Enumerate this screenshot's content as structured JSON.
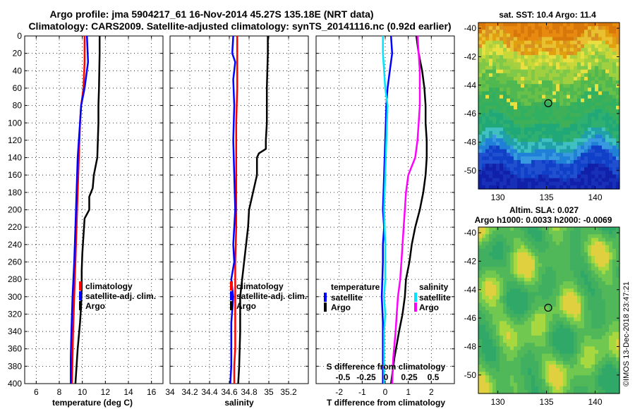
{
  "title": {
    "line1": "Argo profile: jma 5904217_61 16-Nov-2014 45.27S 135.18E (NRT data)",
    "line2": "Climatology: CARS2009. Satellite-adjusted climatology: synTS_20141116.nc (0.92d earlier)"
  },
  "watermark": "©IMOS 13-Dec-2018 23:47:21",
  "colors": {
    "climatology": "#ff0000",
    "satellite": "#0000ff",
    "argo": "#000000",
    "s_satellite": "#00e5ff",
    "s_argo": "#ff00ff"
  },
  "chart_data": [
    {
      "id": "temperature",
      "type": "line",
      "xlabel": "temperature (deg C)",
      "xlim": [
        5,
        17
      ],
      "xticks": [
        6,
        8,
        10,
        12,
        14,
        16
      ],
      "ylim": [
        0,
        400
      ],
      "yticks": [
        0,
        20,
        40,
        60,
        80,
        100,
        120,
        140,
        160,
        180,
        200,
        220,
        240,
        260,
        280,
        300,
        320,
        340,
        360,
        380,
        400
      ],
      "legend": [
        "climatology",
        "satellite-adj. clim.",
        "Argo"
      ],
      "series": [
        {
          "name": "climatology",
          "color": "#ff0000",
          "x": [
            10.2,
            10.2,
            10.1,
            9.9,
            9.8,
            9.7,
            9.6,
            9.5,
            9.4,
            9.3,
            9.2,
            9.15,
            9.1
          ],
          "y": [
            0,
            30,
            60,
            80,
            100,
            140,
            180,
            220,
            260,
            300,
            340,
            370,
            400
          ]
        },
        {
          "name": "satellite-adj. clim.",
          "color": "#0000ff",
          "x": [
            10.4,
            10.5,
            10.2,
            9.9,
            9.8,
            9.6,
            9.5,
            9.4,
            9.3,
            9.15,
            9.05,
            9.0,
            9.0
          ],
          "y": [
            0,
            30,
            60,
            80,
            100,
            140,
            180,
            220,
            260,
            300,
            340,
            370,
            400
          ]
        },
        {
          "name": "Argo",
          "color": "#000000",
          "x": [
            11.5,
            11.5,
            11.45,
            11.4,
            11.4,
            11.35,
            11.3,
            11.0,
            10.9,
            10.6,
            10.6,
            10.2,
            10.1,
            10.0,
            9.95,
            9.95,
            9.9,
            9.8,
            9.6,
            9.5,
            9.4
          ],
          "y": [
            0,
            20,
            60,
            80,
            100,
            120,
            140,
            160,
            175,
            185,
            200,
            210,
            230,
            250,
            270,
            290,
            310,
            330,
            360,
            380,
            400
          ]
        }
      ]
    },
    {
      "id": "salinity",
      "type": "line",
      "xlabel": "salinity",
      "xlim": [
        34.0,
        35.4
      ],
      "xticks": [
        34,
        34.2,
        34.4,
        34.6,
        34.8,
        35,
        35.2
      ],
      "xtick_labels": [
        "34",
        "34.2",
        "34.4",
        "34.6",
        "34.8",
        "35",
        "35.2"
      ],
      "ylim": [
        0,
        400
      ],
      "legend": [
        "climatology",
        "satellite-adj. clim.",
        "Argo"
      ],
      "series": [
        {
          "name": "climatology",
          "color": "#ff0000",
          "x": [
            34.68,
            34.68,
            34.68,
            34.67,
            34.67,
            34.67,
            34.67,
            34.66,
            34.66,
            34.66,
            34.66,
            34.65,
            34.65
          ],
          "y": [
            0,
            30,
            60,
            100,
            140,
            180,
            220,
            260,
            300,
            340,
            360,
            380,
            400
          ]
        },
        {
          "name": "satellite-adj. clim.",
          "color": "#0000ff",
          "x": [
            34.64,
            34.63,
            34.66,
            34.64,
            34.65,
            34.64,
            34.65,
            34.66,
            34.64,
            34.65,
            34.62,
            34.64,
            34.62,
            34.62,
            34.62,
            34.61
          ],
          "y": [
            0,
            20,
            30,
            50,
            80,
            120,
            160,
            200,
            240,
            260,
            280,
            300,
            330,
            360,
            380,
            400
          ]
        },
        {
          "name": "Argo",
          "color": "#000000",
          "x": [
            34.99,
            34.99,
            34.98,
            34.98,
            34.97,
            34.97,
            34.9,
            34.88,
            34.88,
            34.86,
            34.84,
            34.8,
            34.79,
            34.77,
            34.75,
            34.73,
            34.71,
            34.71,
            34.7,
            34.69
          ],
          "y": [
            0,
            20,
            60,
            100,
            120,
            130,
            135,
            140,
            160,
            170,
            180,
            200,
            220,
            240,
            260,
            280,
            300,
            340,
            380,
            400
          ]
        }
      ]
    },
    {
      "id": "difference",
      "type": "line",
      "xlabel": "T difference from climatology",
      "xlim": [
        -3,
        3
      ],
      "xticks": [
        -2,
        -1,
        0,
        1,
        2
      ],
      "ylim": [
        0,
        400
      ],
      "s_axis_label": "S difference from climatology",
      "s_ticks": [
        "-0.5",
        "-0.25",
        "0",
        "0.25",
        "0.5"
      ],
      "legend_temperature": {
        "heading": "temperature",
        "items": [
          "satellite",
          "Argo"
        ]
      },
      "legend_salinity": {
        "heading": "salinity",
        "items": [
          "satellite",
          "Argo"
        ]
      },
      "series": [
        {
          "name": "T satellite",
          "color": "#0000ff",
          "x": [
            0.25,
            0.3,
            0.2,
            0.1,
            0.05,
            0.0,
            -0.05,
            -0.1,
            -0.05,
            -0.1,
            -0.1,
            -0.15,
            -0.1,
            -0.1,
            -0.1,
            -0.1
          ],
          "y": [
            0,
            20,
            40,
            60,
            80,
            120,
            160,
            200,
            220,
            240,
            260,
            300,
            330,
            360,
            380,
            400
          ]
        },
        {
          "name": "T Argo",
          "color": "#000000",
          "x": [
            1.35,
            1.45,
            1.6,
            1.7,
            1.75,
            1.75,
            1.8,
            1.8,
            1.75,
            1.65,
            1.5,
            1.3,
            1.15,
            1.05,
            0.9,
            0.85,
            0.75,
            0.6,
            0.4,
            0.25
          ],
          "y": [
            0,
            20,
            40,
            60,
            80,
            100,
            120,
            140,
            160,
            180,
            200,
            220,
            240,
            260,
            280,
            300,
            320,
            340,
            370,
            400
          ]
        },
        {
          "name": "S satellite",
          "color": "#00e5ff",
          "x": [
            -0.1,
            -0.1,
            -0.05,
            0.0,
            0.1,
            0.05,
            0.0,
            -0.05,
            0.0,
            0.0,
            -0.05,
            0.0,
            -0.05,
            -0.05,
            -0.05,
            -0.05
          ],
          "y": [
            0,
            20,
            40,
            60,
            80,
            120,
            160,
            200,
            240,
            280,
            300,
            320,
            340,
            360,
            380,
            400
          ]
        },
        {
          "name": "S Argo",
          "color": "#ff00ff",
          "x": [
            1.4,
            1.45,
            1.5,
            1.5,
            1.5,
            1.45,
            1.4,
            1.3,
            1.0,
            0.9,
            0.85,
            0.8,
            0.75,
            0.7,
            0.65,
            0.55,
            0.5,
            0.45,
            0.35,
            0.3
          ],
          "y": [
            0,
            20,
            40,
            60,
            80,
            100,
            120,
            140,
            160,
            180,
            200,
            220,
            240,
            260,
            280,
            300,
            320,
            340,
            370,
            400
          ]
        }
      ]
    },
    {
      "id": "sst_map",
      "type": "heatmap",
      "title": "sat. SST: 10.4 Argo: 11.4",
      "xlim": [
        128,
        142.5
      ],
      "ylim": [
        -51.3,
        -39.6
      ],
      "xticks": [
        130,
        135,
        140
      ],
      "yticks": [
        -40,
        -42,
        -44,
        -46,
        -48,
        -50
      ],
      "marker": {
        "lon": 135.18,
        "lat": -45.27
      }
    },
    {
      "id": "sla_map",
      "type": "heatmap",
      "title": "Altim. SLA: 0.027",
      "subtitle": "Argo h1000: 0.0033 h2000: -0.0069",
      "xlim": [
        128,
        142.5
      ],
      "ylim": [
        -51.3,
        -39.6
      ],
      "xticks": [
        130,
        135,
        140
      ],
      "yticks": [
        -40,
        -42,
        -44,
        -46,
        -48,
        -50
      ],
      "marker": {
        "lon": 135.18,
        "lat": -45.27
      }
    }
  ]
}
